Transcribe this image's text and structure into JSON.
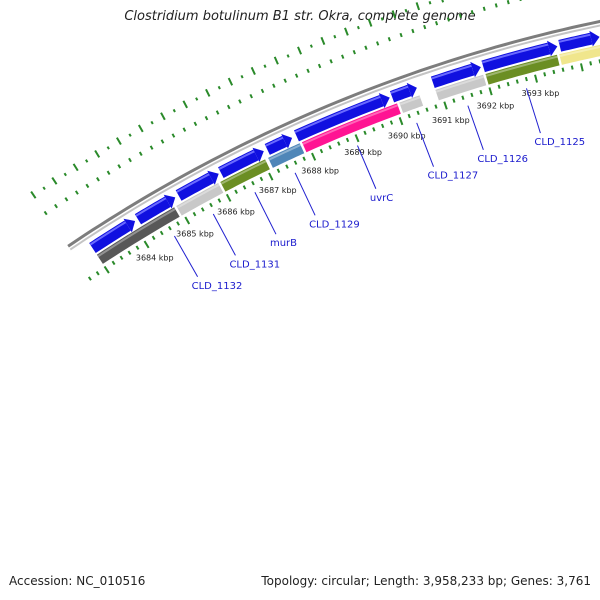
{
  "title": "Clostridium botulinum B1 str. Okra, complete genome",
  "footer": {
    "accession": "Accession: NC_010516",
    "stats": "Topology: circular; Length: 3,958,233 bp; Genes: 3,761"
  },
  "colors": {
    "forward_gene": "#1010e0",
    "backbone": "#8c8c8c",
    "tick": "#2a8a2a",
    "label_text": "#1a1acd"
  },
  "position_labels": [
    "3684 kbp",
    "3685 kbp",
    "3686 kbp",
    "3687 kbp",
    "3688 kbp",
    "3689 kbp",
    "3690 kbp",
    "3691 kbp",
    "3692 kbp",
    "3693 kbp"
  ],
  "forward_genes": [
    {
      "start": 3683.0,
      "end": 3684.05
    },
    {
      "start": 3684.12,
      "end": 3685.02
    },
    {
      "start": 3685.1,
      "end": 3686.05
    },
    {
      "start": 3686.1,
      "end": 3687.1
    },
    {
      "start": 3687.18,
      "end": 3687.75
    },
    {
      "start": 3687.85,
      "end": 3689.95
    },
    {
      "start": 3690.0,
      "end": 3690.55
    },
    {
      "start": 3690.9,
      "end": 3691.95
    },
    {
      "start": 3692.0,
      "end": 3693.6
    },
    {
      "start": 3693.65,
      "end": 3694.5
    }
  ],
  "reverse_genes": [
    {
      "start": 3683.0,
      "end": 3684.9,
      "color": "#585858"
    },
    {
      "start": 3684.95,
      "end": 3685.95,
      "color": "#c8c8c8"
    },
    {
      "start": 3686.0,
      "end": 3687.05,
      "color": "#6b8e23"
    },
    {
      "start": 3687.12,
      "end": 3687.85,
      "color": "#4f86b8"
    },
    {
      "start": 3687.9,
      "end": 3690.05,
      "color": "#ff1493"
    },
    {
      "start": 3690.1,
      "end": 3690.55,
      "color": "#c8c8c8"
    },
    {
      "start": 3690.9,
      "end": 3691.95,
      "color": "#c8c8c8"
    },
    {
      "start": 3692.0,
      "end": 3693.55,
      "color": "#6b8e23"
    },
    {
      "start": 3693.6,
      "end": 3694.5,
      "color": "#f0e68c"
    }
  ],
  "gene_labels": [
    {
      "text": "CLD_1132",
      "pos": 3684.6
    },
    {
      "text": "CLD_1131",
      "pos": 3685.55
    },
    {
      "text": "murB",
      "pos": 3686.55
    },
    {
      "text": "CLD_1129",
      "pos": 3687.5
    },
    {
      "text": "uvrC",
      "pos": 3688.95
    },
    {
      "text": "CLD_1127",
      "pos": 3690.3
    },
    {
      "text": "CLD_1126",
      "pos": 3691.45
    },
    {
      "text": "CLD_1125",
      "pos": 3692.75
    }
  ]
}
